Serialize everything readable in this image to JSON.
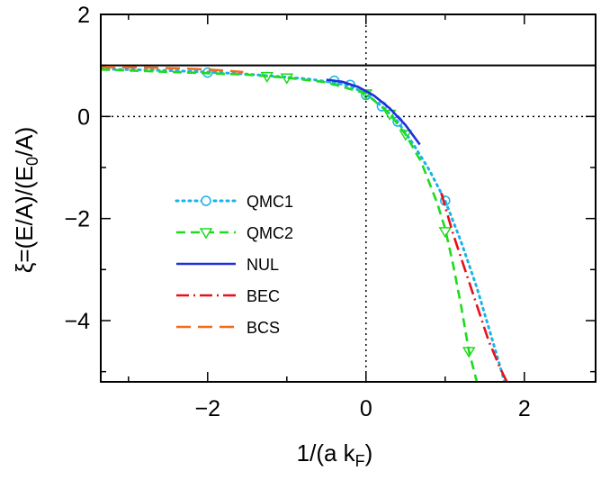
{
  "chart_data": {
    "type": "line",
    "xlabel": "1/(a k",
    "xlabel_sub": "F",
    "xlabel_close": ")",
    "ylabel_parts": [
      "ξ=(E/A)/(E",
      "0",
      "/A)"
    ],
    "xlim": [
      -3.35,
      2.9
    ],
    "ylim": [
      -5.2,
      2.0
    ],
    "x_ticks": [
      -2,
      0,
      2
    ],
    "x_tick_labels": [
      "−2",
      "0",
      "2"
    ],
    "y_ticks": [
      2,
      0,
      -2,
      -4
    ],
    "y_tick_labels": [
      "2",
      "0",
      "−2",
      "−4"
    ],
    "x_minor_ticks": [
      -3,
      -1,
      1
    ],
    "y_minor_ticks": [
      1,
      -1,
      -3,
      -5
    ],
    "grid": false,
    "reference_lines": {
      "horizontal_solid": 1,
      "horizontal_dotted": 0,
      "vertical_dotted": 0
    },
    "legend_position": "left-center",
    "series": [
      {
        "name": "QMC1",
        "color": "#1ab2e8",
        "style": "dotted",
        "marker": "circle",
        "x": [
          -3.35,
          -2.5,
          -2.0,
          -1.5,
          -1.0,
          -0.7,
          -0.4,
          -0.2,
          0.0,
          0.2,
          0.4,
          0.6,
          0.8,
          1.0,
          1.2,
          1.4,
          1.6,
          1.75
        ],
        "y": [
          0.93,
          0.9,
          0.87,
          0.83,
          0.77,
          0.73,
          0.66,
          0.6,
          0.44,
          0.2,
          -0.1,
          -0.55,
          -1.05,
          -1.65,
          -2.45,
          -3.35,
          -4.4,
          -5.2
        ],
        "marker_x": [
          -2.0,
          -0.4,
          -0.2,
          0.0,
          0.2,
          0.4,
          1.0
        ],
        "marker_y": [
          0.86,
          0.7,
          0.62,
          0.42,
          0.2,
          -0.1,
          -1.65
        ]
      },
      {
        "name": "QMC2",
        "color": "#1edb1e",
        "style": "dashed",
        "marker": "triangle-down",
        "x": [
          -3.35,
          -1.5,
          -1.0,
          -0.5,
          0.0,
          0.3,
          0.5,
          0.7,
          0.9,
          1.0,
          1.1,
          1.2,
          1.3,
          1.4
        ],
        "y": [
          0.92,
          0.82,
          0.76,
          0.67,
          0.45,
          0.05,
          -0.35,
          -0.9,
          -1.7,
          -2.2,
          -2.9,
          -3.7,
          -4.6,
          -5.2
        ],
        "marker_x": [
          -1.25,
          -1.0,
          0.0,
          0.3,
          0.5,
          1.0,
          1.3
        ],
        "marker_y": [
          0.79,
          0.76,
          0.45,
          0.05,
          -0.35,
          -2.25,
          -4.6
        ]
      },
      {
        "name": "NUL",
        "color": "#1f2fdc",
        "style": "solid",
        "marker": "none",
        "x": [
          -0.5,
          -0.3,
          -0.1,
          0.1,
          0.3,
          0.5,
          0.68
        ],
        "y": [
          0.72,
          0.68,
          0.58,
          0.41,
          0.16,
          -0.17,
          -0.55
        ]
      },
      {
        "name": "BEC",
        "color": "#e8101a",
        "style": "dash-dot",
        "marker": "none",
        "x": [
          0.95,
          1.1,
          1.25,
          1.4,
          1.55,
          1.7,
          1.78
        ],
        "y": [
          -1.5,
          -2.3,
          -3.0,
          -3.7,
          -4.4,
          -4.95,
          -5.2
        ]
      },
      {
        "name": "BCS",
        "color": "#f26a1e",
        "style": "long-dashed",
        "marker": "none",
        "x": [
          -3.35,
          -2.8,
          -2.3,
          -2.0,
          -1.8,
          -1.55
        ],
        "y": [
          0.97,
          0.96,
          0.94,
          0.92,
          0.9,
          0.87
        ]
      }
    ]
  }
}
